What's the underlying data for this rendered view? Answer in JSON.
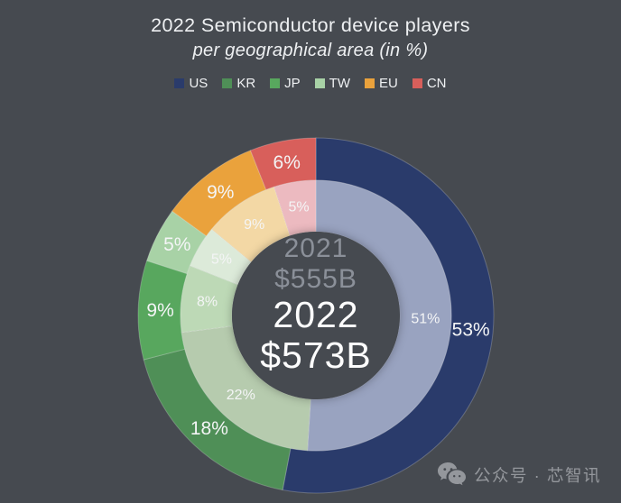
{
  "chart_data": {
    "type": "donut",
    "title": "2022 Semiconductor device players",
    "subtitle": "per geographical area (in %)",
    "categories": [
      "US",
      "KR",
      "JP",
      "TW",
      "EU",
      "CN"
    ],
    "legend": [
      {
        "label": "US",
        "color": "#2a3b6b"
      },
      {
        "label": "KR",
        "color": "#4f8f57"
      },
      {
        "label": "JP",
        "color": "#58a75e"
      },
      {
        "label": "TW",
        "color": "#a8d2a6"
      },
      {
        "label": "EU",
        "color": "#eaa23c"
      },
      {
        "label": "CN",
        "color": "#d85f5b"
      }
    ],
    "rings": [
      {
        "name": "2022",
        "total": "$573B",
        "values": [
          53,
          18,
          9,
          5,
          9,
          6
        ],
        "colors": [
          "#2a3b6b",
          "#4f8f57",
          "#58a75e",
          "#a8d2a6",
          "#eaa23c",
          "#d85f5b"
        ]
      },
      {
        "name": "2021",
        "total": "$555B",
        "values": [
          51,
          22,
          8,
          5,
          9,
          5
        ],
        "colors": [
          "#99a3c0",
          "#b6cbae",
          "#bdd9b6",
          "#dcead9",
          "#f3d8a5",
          "#ecbac0"
        ]
      }
    ],
    "center": {
      "prev_year": "2021",
      "prev_value": "$555B",
      "curr_year": "2022",
      "curr_value": "$573B"
    },
    "label_suffix": "%",
    "legend_position": "top",
    "background": "#464a50",
    "label_color": "#f4f5f6"
  },
  "watermark": {
    "icon": "wechat-icon",
    "text": "公众号 · 芯智讯"
  }
}
